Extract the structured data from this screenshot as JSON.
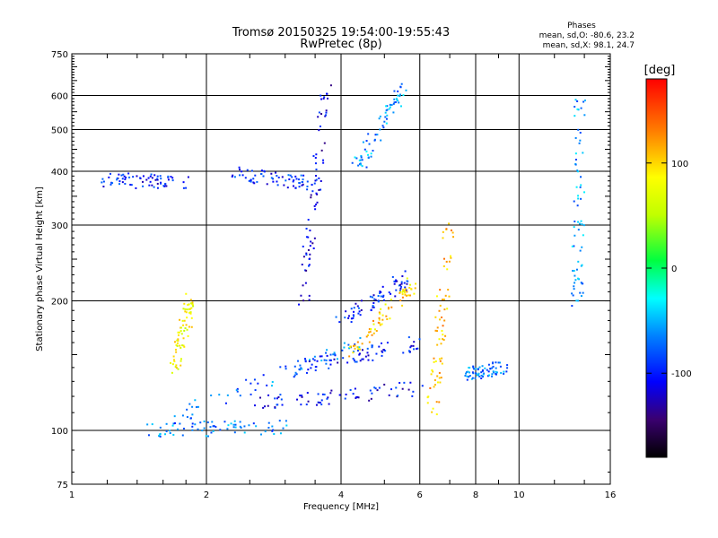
{
  "title_line1": "Tromsø 20150325 19:54:00-19:55:43",
  "title_line2": "RwPretec (8p)",
  "stats": {
    "header": "Phases",
    "line_o": "mean, sd,O: -80.6, 23.2",
    "line_x": "mean, sd,X:  98.1, 24.7"
  },
  "colorbar": {
    "label": "[deg]",
    "ticks": [
      {
        "value": 100,
        "label": "100"
      },
      {
        "value": 0,
        "label": "0"
      },
      {
        "value": -100,
        "label": "-100"
      }
    ],
    "range": [
      -180,
      180
    ]
  },
  "chart_data": {
    "type": "scatter",
    "title": "Tromsø 20150325 19:54:00-19:55:43",
    "subtitle": "RwPretec (8p)",
    "xlabel": "Frequency [MHz]",
    "ylabel": "Stationary phase Virtual Height [km]",
    "x_scale": "log",
    "y_scale": "log",
    "xlim": [
      1,
      16
    ],
    "ylim": [
      75,
      750
    ],
    "x_ticks": [
      1,
      2,
      4,
      6,
      8,
      10,
      16
    ],
    "x_tick_labels": [
      "1",
      "2",
      "4",
      "6",
      "8",
      "10",
      "16"
    ],
    "y_ticks": [
      75,
      100,
      200,
      300,
      400,
      500,
      600,
      750
    ],
    "y_tick_labels": [
      "75",
      "100",
      "200",
      "300",
      "400",
      "500",
      "600",
      "750"
    ],
    "grid": true,
    "grid_x": [
      2,
      4,
      6,
      8,
      10
    ],
    "grid_y": [
      100,
      200,
      300,
      400,
      500,
      600
    ],
    "color_scale": "phase (deg), rainbow, -180 to 180",
    "series": [
      {
        "freq_mhz": [
          1.15,
          1.85
        ],
        "height_km": [
          380,
          380
        ],
        "phase_deg": -100
      },
      {
        "freq_mhz": [
          2.3,
          3.5
        ],
        "height_km": [
          395,
          375
        ],
        "phase_deg": -95
      },
      {
        "freq_mhz": [
          3.3,
          3.7
        ],
        "height_km": [
          200,
          620
        ],
        "phase_deg": -110
      },
      {
        "freq_mhz": [
          1.5,
          3.0
        ],
        "height_km": [
          100,
          102
        ],
        "phase_deg": -65
      },
      {
        "freq_mhz": [
          1.6,
          4.5
        ],
        "height_km": [
          105,
          160
        ],
        "phase_deg": -70
      },
      {
        "freq_mhz": [
          2.5,
          6.0
        ],
        "height_km": [
          115,
          125
        ],
        "phase_deg": -105
      },
      {
        "freq_mhz": [
          3.2,
          6.0
        ],
        "height_km": [
          140,
          160
        ],
        "phase_deg": -100
      },
      {
        "freq_mhz": [
          4.0,
          5.8
        ],
        "height_km": [
          180,
          230
        ],
        "phase_deg": -100
      },
      {
        "freq_mhz": [
          4.3,
          5.5
        ],
        "height_km": [
          400,
          620
        ],
        "phase_deg": -60
      },
      {
        "freq_mhz": [
          4.2,
          5.8
        ],
        "height_km": [
          150,
          220
        ],
        "phase_deg": 100
      },
      {
        "freq_mhz": [
          6.4,
          7.0
        ],
        "height_km": [
          110,
          300
        ],
        "phase_deg": 110
      },
      {
        "freq_mhz": [
          7.6,
          9.3
        ],
        "height_km": [
          135,
          140
        ],
        "phase_deg": -70
      },
      {
        "freq_mhz": [
          1.7,
          1.85
        ],
        "height_km": [
          140,
          200
        ],
        "phase_deg": 80
      },
      {
        "freq_mhz": [
          13.5,
          13.7
        ],
        "height_km": [
          190,
          610
        ],
        "phase_deg": -60
      }
    ]
  }
}
